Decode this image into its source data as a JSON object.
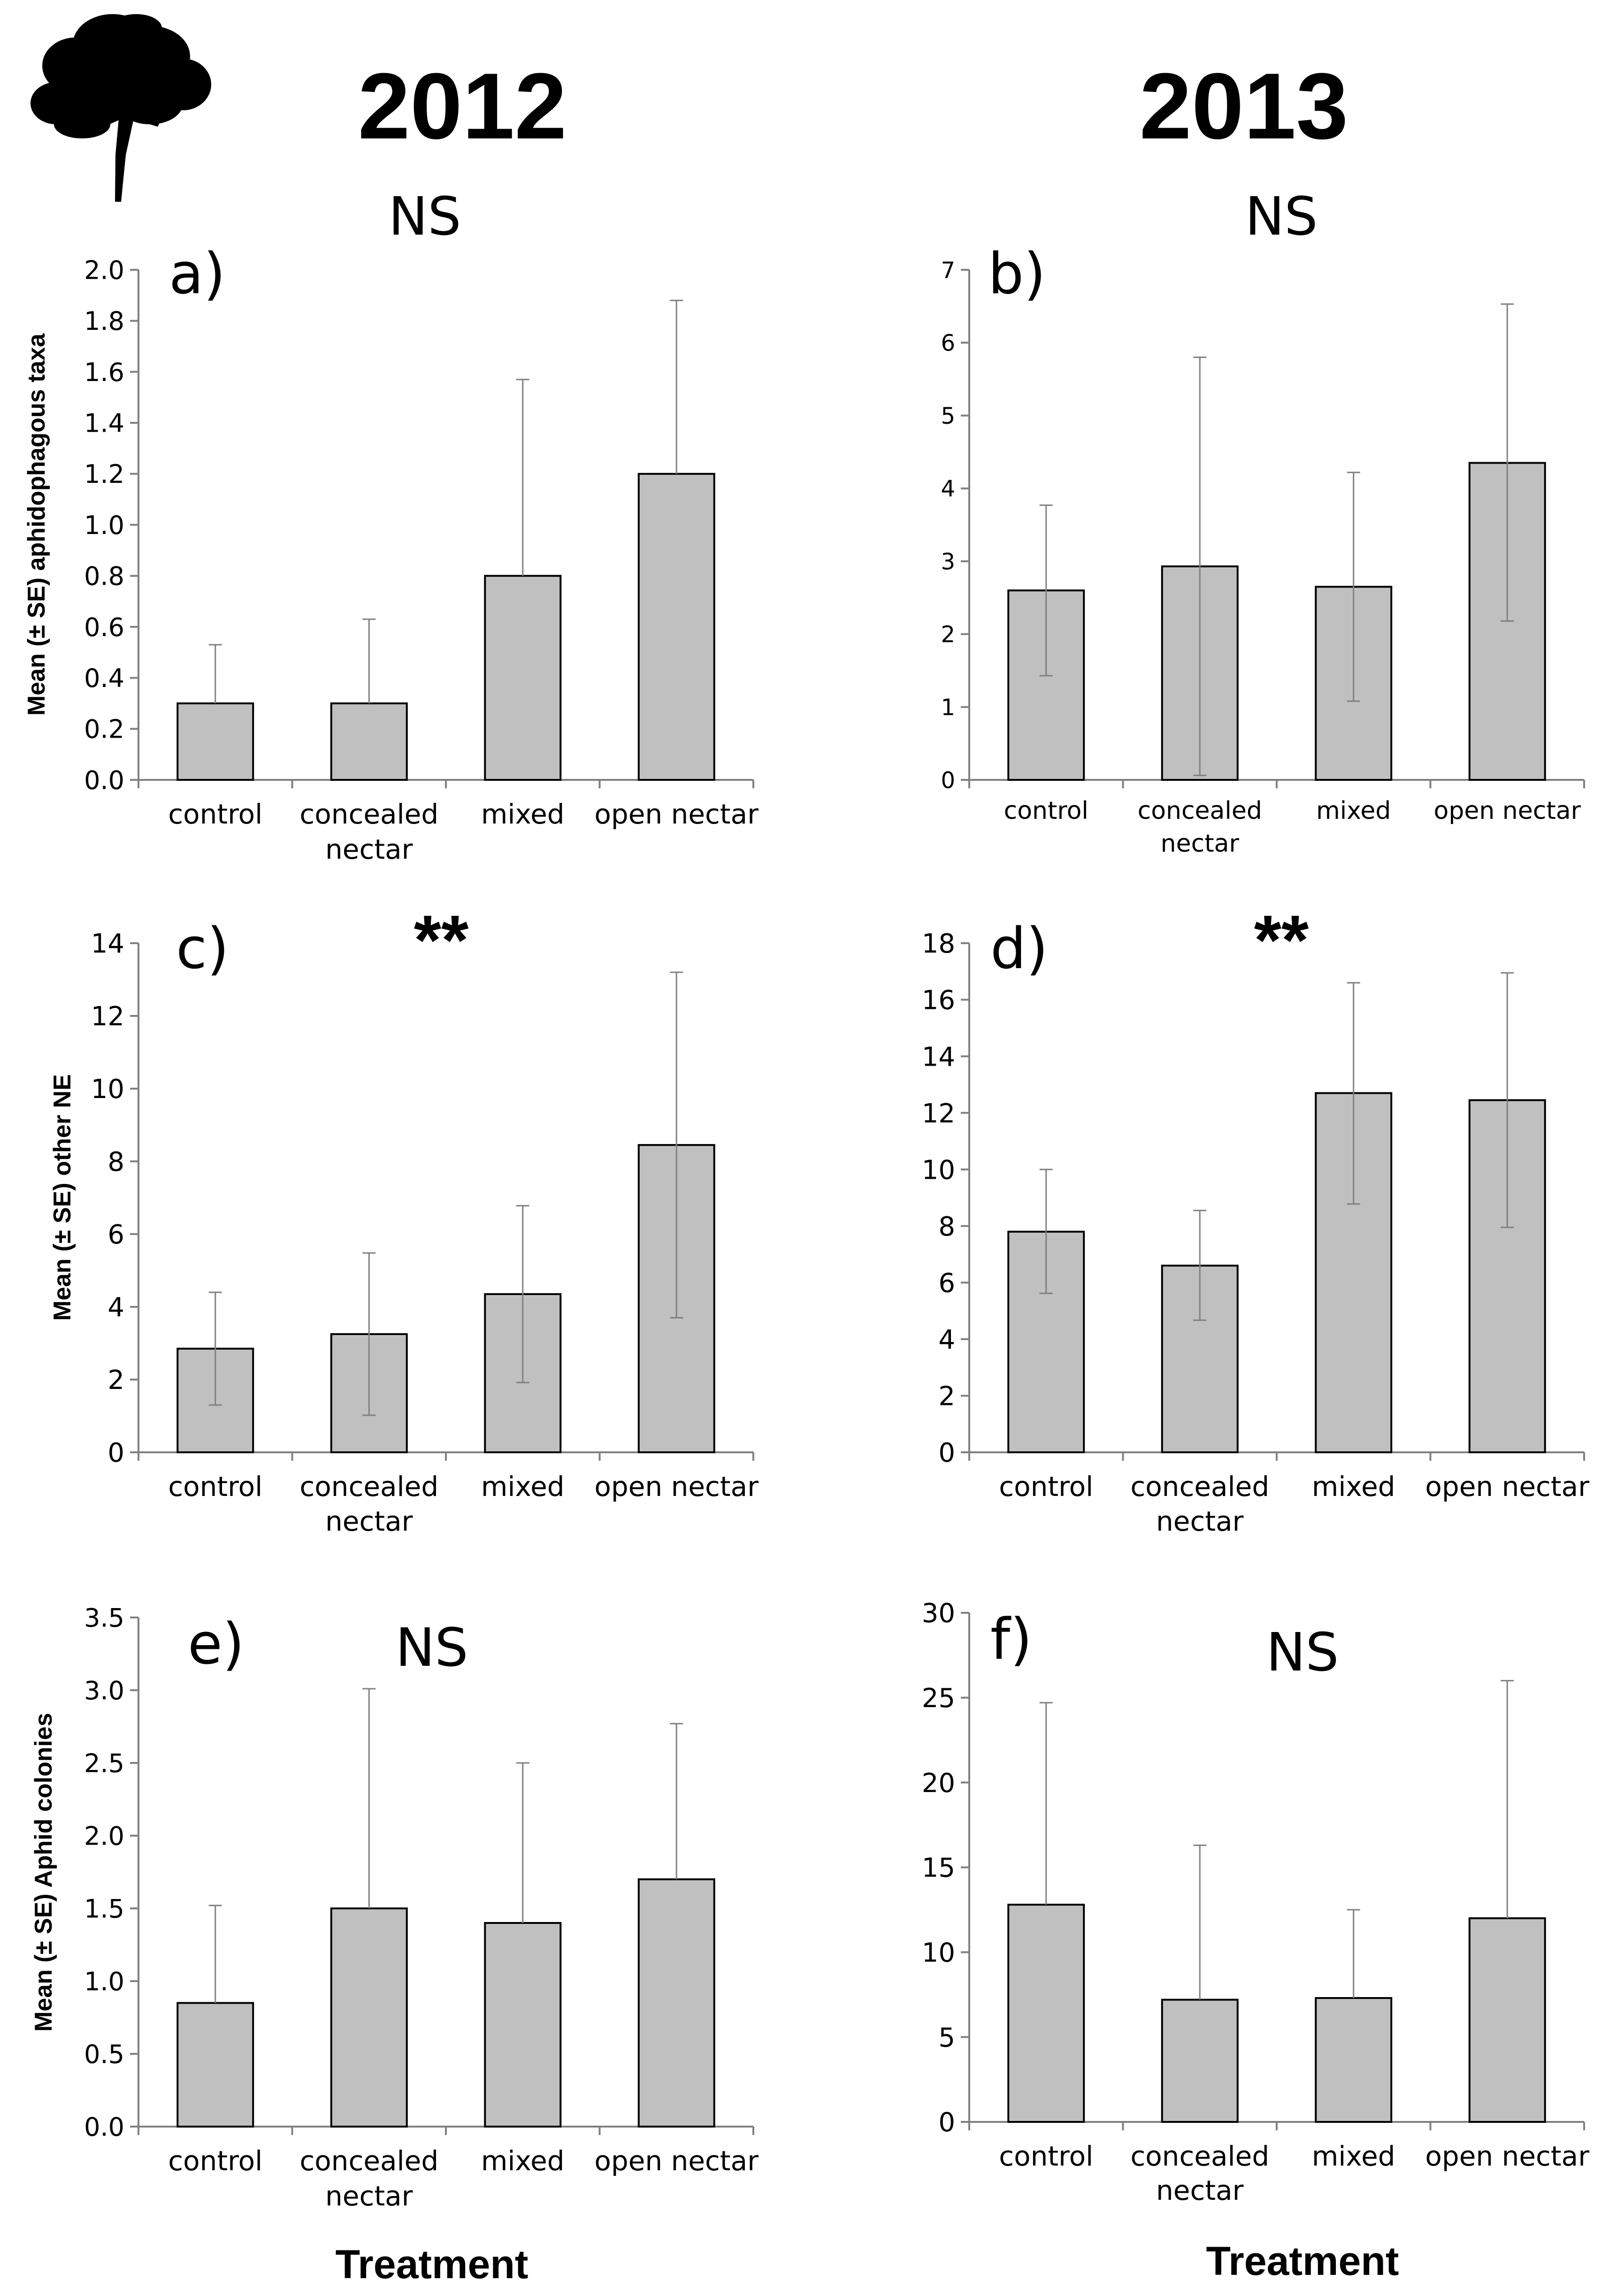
{
  "headers": {
    "year_left": "2012",
    "year_right": "2013"
  },
  "xlabels": {
    "left": "Treatment",
    "right": "Treatment"
  },
  "colors": {
    "bar_fill": "#c0c0c0",
    "bar_stroke": "#000000",
    "axis": "#808080",
    "text": "#000000",
    "tree": "#000000"
  },
  "icons": {
    "tree": "tree-silhouette-icon"
  },
  "chart_data": [
    {
      "id": "a",
      "panel_label": "a)",
      "significance": "NS",
      "type": "bar",
      "ylabel": "Mean (± SE) aphidophagous taxa",
      "categories": [
        "control",
        "concealed nectar",
        "mixed",
        "open nectar"
      ],
      "values": [
        0.3,
        0.3,
        0.8,
        1.2
      ],
      "err_upper": [
        0.53,
        0.63,
        1.57,
        1.88
      ],
      "err_lower": [
        null,
        null,
        null,
        null
      ],
      "ylim": [
        0,
        2.0
      ],
      "yticks": [
        "0.0",
        "0.2",
        "0.4",
        "0.6",
        "0.8",
        "1.0",
        "1.2",
        "1.4",
        "1.6",
        "1.8",
        "2.0"
      ]
    },
    {
      "id": "b",
      "panel_label": "b)",
      "significance": "NS",
      "type": "bar",
      "ylabel": "",
      "categories": [
        "control",
        "concealed nectar",
        "mixed",
        "open nectar"
      ],
      "values": [
        2.6,
        2.93,
        2.65,
        4.35
      ],
      "err_upper": [
        3.77,
        5.8,
        4.22,
        6.53
      ],
      "err_lower": [
        1.43,
        0.06,
        1.08,
        2.18
      ],
      "ylim": [
        0,
        7
      ],
      "yticks": [
        "0",
        "1",
        "2",
        "3",
        "4",
        "5",
        "6",
        "7"
      ]
    },
    {
      "id": "c",
      "panel_label": "c)",
      "significance": "**",
      "type": "bar",
      "ylabel": "Mean (± SE) other NE",
      "categories": [
        "control",
        "concealed nectar",
        "mixed",
        "open nectar"
      ],
      "values": [
        2.85,
        3.25,
        4.35,
        8.45
      ],
      "err_upper": [
        4.4,
        5.48,
        6.78,
        13.2
      ],
      "err_lower": [
        1.3,
        1.02,
        1.92,
        3.7
      ],
      "ylim": [
        0,
        14
      ],
      "yticks": [
        "0",
        "2",
        "4",
        "6",
        "8",
        "10",
        "12",
        "14"
      ]
    },
    {
      "id": "d",
      "panel_label": "d)",
      "significance": "**",
      "type": "bar",
      "ylabel": "",
      "categories": [
        "control",
        "concealed nectar",
        "mixed",
        "open nectar"
      ],
      "values": [
        7.8,
        6.6,
        12.7,
        12.45
      ],
      "err_upper": [
        10.0,
        8.55,
        16.6,
        16.95
      ],
      "err_lower": [
        5.62,
        4.67,
        8.78,
        7.95
      ],
      "ylim": [
        0,
        18
      ],
      "yticks": [
        "0",
        "2",
        "4",
        "6",
        "8",
        "10",
        "12",
        "14",
        "16",
        "18"
      ]
    },
    {
      "id": "e",
      "panel_label": "e)",
      "significance": "NS",
      "type": "bar",
      "ylabel": "Mean (± SE) Aphid colonies",
      "categories": [
        "control",
        "concealed nectar",
        "mixed",
        "open nectar"
      ],
      "values": [
        0.85,
        1.5,
        1.4,
        1.7
      ],
      "err_upper": [
        1.52,
        3.01,
        2.5,
        2.77
      ],
      "err_lower": [
        null,
        null,
        null,
        null
      ],
      "ylim": [
        0,
        3.5
      ],
      "yticks": [
        "0.0",
        "0.5",
        "1.0",
        "1.5",
        "2.0",
        "2.5",
        "3.0",
        "3.5"
      ]
    },
    {
      "id": "f",
      "panel_label": "f)",
      "significance": "NS",
      "type": "bar",
      "ylabel": "",
      "categories": [
        "control",
        "concealed nectar",
        "mixed",
        "open nectar"
      ],
      "values": [
        12.8,
        7.2,
        7.3,
        12.0
      ],
      "err_upper": [
        24.7,
        16.3,
        12.5,
        26.0
      ],
      "err_lower": [
        null,
        null,
        null,
        null
      ],
      "ylim": [
        0,
        30
      ],
      "yticks": [
        "0",
        "5",
        "10",
        "15",
        "20",
        "25",
        "30"
      ]
    }
  ]
}
